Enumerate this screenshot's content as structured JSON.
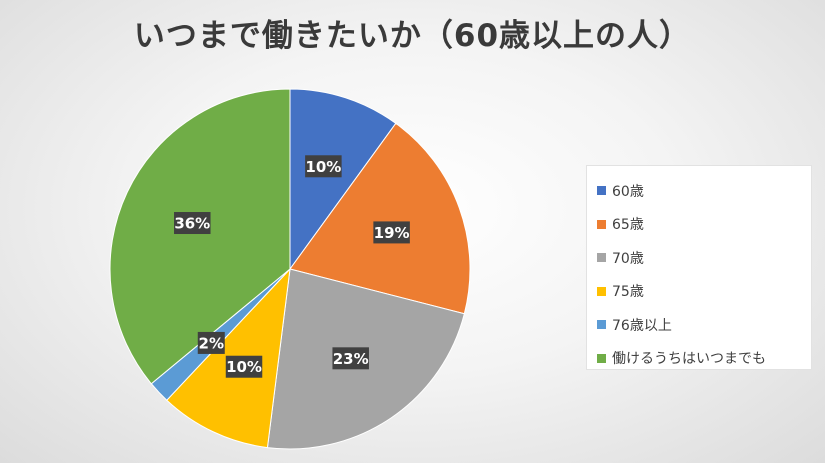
{
  "chart_data": {
    "type": "pie",
    "title": "いつまで働きたいか（60歳以上の人）",
    "categories": [
      "60歳",
      "65歳",
      "70歳",
      "75歳",
      "76歳以上",
      "働けるうちはいつまでも"
    ],
    "values": [
      10,
      19,
      23,
      10,
      2,
      36
    ],
    "value_labels": [
      "10%",
      "19%",
      "23%",
      "10%",
      "2%",
      "36%"
    ],
    "colors": [
      "#4472C4",
      "#ED7D31",
      "#A5A5A5",
      "#FFC000",
      "#5B9BD5",
      "#70AD47"
    ],
    "legend_position": "right"
  }
}
